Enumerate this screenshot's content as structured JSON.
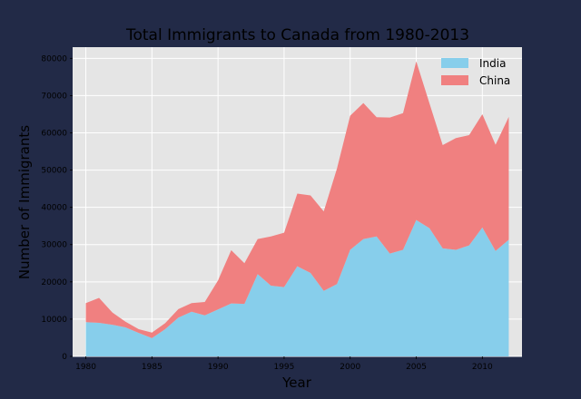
{
  "chart_data": {
    "type": "area",
    "stacked": true,
    "title": "Total Immigrants to Canada from 1980-2013",
    "xlabel": "Year",
    "ylabel": "Number of Immigrants",
    "x": [
      1980,
      1981,
      1982,
      1983,
      1984,
      1985,
      1986,
      1987,
      1988,
      1989,
      1990,
      1991,
      1992,
      1993,
      1994,
      1995,
      1996,
      1997,
      1998,
      1999,
      2000,
      2001,
      2002,
      2003,
      2004,
      2005,
      2006,
      2007,
      2008,
      2009,
      2010,
      2011,
      2012
    ],
    "series": [
      {
        "name": "India",
        "color": "#87ceeb",
        "values": [
          9200,
          9000,
          8500,
          7800,
          6300,
          4900,
          7300,
          10400,
          12000,
          11000,
          12600,
          14200,
          14100,
          22100,
          19000,
          18600,
          24200,
          22400,
          17600,
          19400,
          28600,
          31500,
          32200,
          27600,
          28600,
          36600,
          34400,
          29000,
          28600,
          29800,
          34600,
          28300,
          31300
        ]
      },
      {
        "name": "China",
        "color": "#f08080",
        "values": [
          5100,
          6700,
          3300,
          1500,
          1000,
          1500,
          1600,
          2300,
          2300,
          3600,
          7800,
          14300,
          10900,
          9400,
          13200,
          14600,
          19500,
          20800,
          21300,
          31000,
          36000,
          36500,
          32000,
          36500,
          36700,
          42600,
          33500,
          27700,
          30000,
          29600,
          30400,
          28500,
          33000
        ]
      }
    ],
    "xticks": [
      1980,
      1985,
      1990,
      1995,
      2000,
      2005,
      2010
    ],
    "yticks": [
      0,
      10000,
      20000,
      30000,
      40000,
      50000,
      60000,
      70000,
      80000
    ],
    "xlim": [
      1979,
      2013
    ],
    "ylim": [
      0,
      83000
    ],
    "grid": true,
    "legend_position": "top-right",
    "plot_background": "#e5e5e5",
    "figure_background": "#222a47"
  }
}
